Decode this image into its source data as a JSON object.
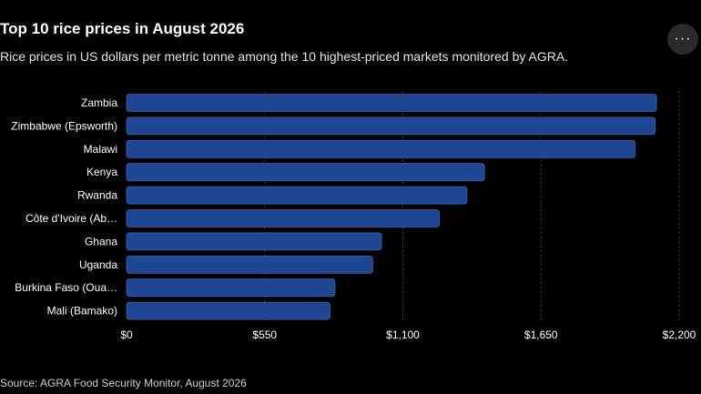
{
  "header": {
    "title": "Top 10 rice prices in August 2026",
    "subtitle": "Rice prices in US dollars per metric tonne among the 10 highest-priced markets monitored by AGRA.",
    "more_label": "···",
    "source": "Source: AGRA Food Security Monitor, August 2026"
  },
  "colors": {
    "bar": "#1f4692",
    "bar_stroke": "#3c63ad",
    "gridline": "#444444",
    "tick_text": "#ffffff"
  },
  "chart_data": {
    "type": "bar",
    "orientation": "horizontal",
    "title": "Top 10 rice prices in August 2026",
    "subtitle": "Rice prices in US dollars per metric tonne among the 10 highest-priced markets monitored by AGRA.",
    "categories": [
      "Zambia",
      "Zimbabwe (Epsworth)",
      "Malawi",
      "Kenya",
      "Rwanda",
      "Côte d'Ivoire (Ab…",
      "Ghana",
      "Uganda",
      "Burkina Faso (Oua…",
      "Mali (Bamako)"
    ],
    "values": [
      2110,
      2105,
      2025,
      1425,
      1355,
      1245,
      1015,
      980,
      830,
      810
    ],
    "xlim": [
      0,
      2200
    ],
    "xticks": [
      0,
      550,
      1100,
      1650,
      2200
    ],
    "xtick_labels": [
      "$0",
      "$550",
      "$1,100",
      "$1,650",
      "$2,200"
    ],
    "grid": "vertical dashed",
    "legend": "none"
  }
}
